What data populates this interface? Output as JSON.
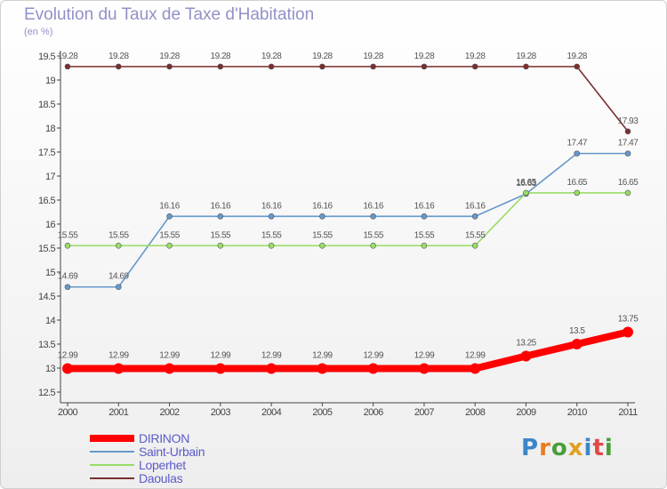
{
  "header": {
    "title": "Evolution du Taux de Taxe d'Habitation",
    "subtitle": "(en %)"
  },
  "branding": {
    "logo_text": "Proxiti",
    "logo_letter_colors": [
      "#3a86c8",
      "#e87d1e",
      "#4a9e3a",
      "#e0a020",
      "#3a86c8",
      "#e04848",
      "#4a9e3a"
    ]
  },
  "chart_data": {
    "type": "line",
    "title": "Evolution du Taux de Taxe d'Habitation",
    "ylabel": "(en %)",
    "xlabel": "",
    "x": [
      "2000",
      "2001",
      "2002",
      "2003",
      "2004",
      "2005",
      "2006",
      "2007",
      "2008",
      "2009",
      "2010",
      "2011"
    ],
    "ylim": [
      12.5,
      19.5
    ],
    "yticks": [
      "12.5",
      "13",
      "13.5",
      "14",
      "14.5",
      "15",
      "15.5",
      "16",
      "16.5",
      "17",
      "17.5",
      "18",
      "18.5",
      "19",
      "19.5"
    ],
    "grid": false,
    "legend_position": "bottom-left",
    "series": [
      {
        "name": "Daoulas",
        "color": "#7b2e2e",
        "values": [
          19.28,
          19.28,
          19.28,
          19.28,
          19.28,
          19.28,
          19.28,
          19.28,
          19.28,
          19.28,
          19.28,
          17.93
        ],
        "labels": [
          "19.28",
          "19.28",
          "19.28",
          "19.28",
          "19.28",
          "19.28",
          "19.28",
          "19.28",
          "19.28",
          "19.28",
          "19.28",
          "17.93"
        ]
      },
      {
        "name": "Saint-Urbain",
        "color": "#6699cc",
        "values": [
          14.69,
          14.69,
          16.16,
          16.16,
          16.16,
          16.16,
          16.16,
          16.16,
          16.16,
          16.63,
          17.47,
          17.47
        ],
        "labels": [
          "14.69",
          "14.69",
          "16.16",
          "16.16",
          "16.16",
          "16.16",
          "16.16",
          "16.16",
          "16.16",
          "16.63",
          "17.47",
          "17.47"
        ]
      },
      {
        "name": "Loperhet",
        "color": "#99dd66",
        "values": [
          15.55,
          15.55,
          15.55,
          15.55,
          15.55,
          15.55,
          15.55,
          15.55,
          15.55,
          16.65,
          16.65,
          16.65
        ],
        "labels": [
          "15.55",
          "15.55",
          "15.55",
          "15.55",
          "15.55",
          "15.55",
          "15.55",
          "15.55",
          "15.55",
          "16.65",
          "16.65",
          "16.65"
        ]
      },
      {
        "name": "DIRINON",
        "color": "#ff0000",
        "values": [
          12.99,
          12.99,
          12.99,
          12.99,
          12.99,
          12.99,
          12.99,
          12.99,
          12.99,
          13.25,
          13.5,
          13.75
        ],
        "labels": [
          "12.99",
          "12.99",
          "12.99",
          "12.99",
          "12.99",
          "12.99",
          "12.99",
          "12.99",
          "12.99",
          "13.25",
          "13.5",
          "13.75"
        ]
      }
    ],
    "legend_order": [
      "DIRINON",
      "Saint-Urbain",
      "Loperhet",
      "Daoulas"
    ]
  }
}
